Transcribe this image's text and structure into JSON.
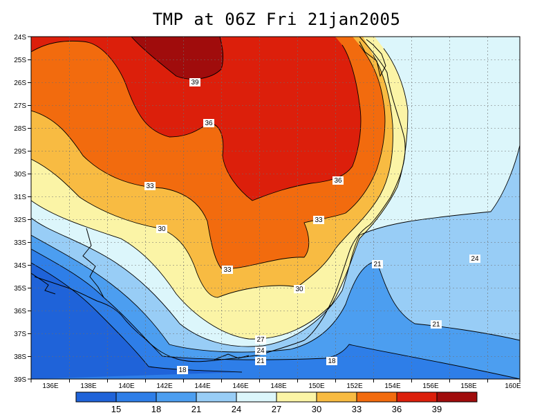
{
  "title": "TMP at 06Z Fri 21jan2005",
  "colors": {
    "c15": "#1f63d9",
    "c18": "#2e7ee8",
    "c21": "#4c9ef0",
    "c24": "#98cdf6",
    "c27": "#dcf6fb",
    "c30": "#fbf4a6",
    "c33": "#f8bb42",
    "c36": "#f26b0e",
    "c39": "#dc1f0b",
    "c42": "#a00c0c"
  },
  "chart_data": {
    "type": "heatmap",
    "variable": "TMP",
    "x_tick_labels": [
      "136E",
      "138E",
      "140E",
      "142E",
      "144E",
      "146E",
      "148E",
      "150E",
      "152E",
      "154E",
      "156E",
      "158E",
      "160E"
    ],
    "y_tick_labels": [
      "24S",
      "25S",
      "26S",
      "27S",
      "28S",
      "29S",
      "30S",
      "31S",
      "32S",
      "33S",
      "34S",
      "35S",
      "36S",
      "37S",
      "38S",
      "39S"
    ],
    "colorbar_labels": [
      "15",
      "18",
      "21",
      "24",
      "27",
      "30",
      "33",
      "36",
      "39"
    ],
    "contour_labels": [
      "39",
      "36",
      "36",
      "33",
      "33",
      "33",
      "30",
      "30",
      "27",
      "24",
      "21",
      "18",
      "21",
      "21",
      "24"
    ]
  }
}
